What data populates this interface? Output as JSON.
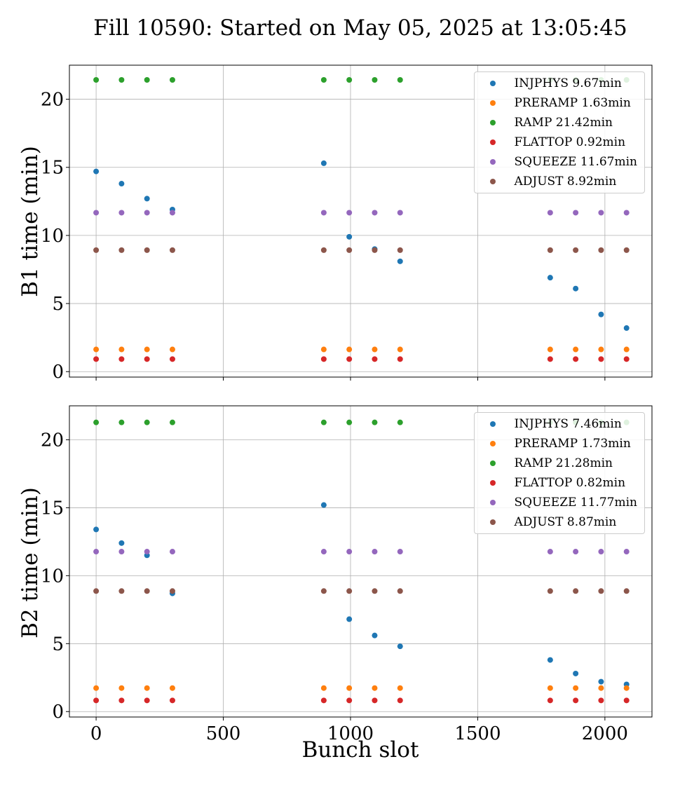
{
  "title": "Fill 10590: Started on May 05, 2025 at 13:05:45",
  "xlabel": "Bunch slot",
  "colors": {
    "INJPHYS": "#1f77b4",
    "PRERAMP": "#ff7f0e",
    "RAMP": "#2ca02c",
    "FLATTOP": "#d62728",
    "SQUEEZE": "#9467bd",
    "ADJUST": "#8c564b"
  },
  "chart_data": [
    {
      "type": "scatter",
      "ylabel": "B1 time (min)",
      "xlim": [
        -105,
        2185
      ],
      "ylim": [
        -0.4,
        22.5
      ],
      "xticks": [
        0,
        500,
        1000,
        1500,
        2000
      ],
      "yticks": [
        0,
        5,
        10,
        15,
        20
      ],
      "grid": true,
      "legend_position": "top-right",
      "x": [
        0,
        100,
        200,
        300,
        895,
        995,
        1095,
        1195,
        1785,
        1885,
        1985,
        2085
      ],
      "series": [
        {
          "name": "INJPHYS 9.67min",
          "key": "INJPHYS",
          "values": [
            14.7,
            13.8,
            12.7,
            11.9,
            15.3,
            9.9,
            9.0,
            8.1,
            6.9,
            6.1,
            4.2,
            3.2
          ]
        },
        {
          "name": "PRERAMP 1.63min",
          "key": "PRERAMP",
          "values": [
            1.63,
            1.63,
            1.63,
            1.63,
            1.63,
            1.63,
            1.63,
            1.63,
            1.63,
            1.63,
            1.63,
            1.63
          ]
        },
        {
          "name": "RAMP 21.42min",
          "key": "RAMP",
          "values": [
            21.42,
            21.42,
            21.42,
            21.42,
            21.42,
            21.42,
            21.42,
            21.42,
            21.42,
            21.42,
            21.42,
            21.42
          ]
        },
        {
          "name": "FLATTOP 0.92min",
          "key": "FLATTOP",
          "values": [
            0.92,
            0.92,
            0.92,
            0.92,
            0.92,
            0.92,
            0.92,
            0.92,
            0.92,
            0.92,
            0.92,
            0.92
          ]
        },
        {
          "name": "SQUEEZE 11.67min",
          "key": "SQUEEZE",
          "values": [
            11.67,
            11.67,
            11.67,
            11.67,
            11.67,
            11.67,
            11.67,
            11.67,
            11.67,
            11.67,
            11.67,
            11.67
          ]
        },
        {
          "name": "ADJUST 8.92min",
          "key": "ADJUST",
          "values": [
            8.92,
            8.92,
            8.92,
            8.92,
            8.92,
            8.92,
            8.92,
            8.92,
            8.92,
            8.92,
            8.92,
            8.92
          ]
        }
      ]
    },
    {
      "type": "scatter",
      "ylabel": "B2 time (min)",
      "xlim": [
        -105,
        2185
      ],
      "ylim": [
        -0.4,
        22.5
      ],
      "xticks": [
        0,
        500,
        1000,
        1500,
        2000
      ],
      "yticks": [
        0,
        5,
        10,
        15,
        20
      ],
      "grid": true,
      "legend_position": "top-right",
      "x": [
        0,
        100,
        200,
        300,
        895,
        995,
        1095,
        1195,
        1785,
        1885,
        1985,
        2085
      ],
      "series": [
        {
          "name": "INJPHYS 7.46min",
          "key": "INJPHYS",
          "values": [
            13.4,
            12.4,
            11.5,
            8.7,
            15.2,
            6.8,
            5.6,
            4.8,
            3.8,
            2.8,
            2.2,
            2.0
          ]
        },
        {
          "name": "PRERAMP 1.73min",
          "key": "PRERAMP",
          "values": [
            1.73,
            1.73,
            1.73,
            1.73,
            1.73,
            1.73,
            1.73,
            1.73,
            1.73,
            1.73,
            1.73,
            1.73
          ]
        },
        {
          "name": "RAMP 21.28min",
          "key": "RAMP",
          "values": [
            21.28,
            21.28,
            21.28,
            21.28,
            21.28,
            21.28,
            21.28,
            21.28,
            21.28,
            21.28,
            21.28,
            21.28
          ]
        },
        {
          "name": "FLATTOP 0.82min",
          "key": "FLATTOP",
          "values": [
            0.82,
            0.82,
            0.82,
            0.82,
            0.82,
            0.82,
            0.82,
            0.82,
            0.82,
            0.82,
            0.82,
            0.82
          ]
        },
        {
          "name": "SQUEEZE 11.77min",
          "key": "SQUEEZE",
          "values": [
            11.77,
            11.77,
            11.77,
            11.77,
            11.77,
            11.77,
            11.77,
            11.77,
            11.77,
            11.77,
            11.77,
            11.77
          ]
        },
        {
          "name": "ADJUST 8.87min",
          "key": "ADJUST",
          "values": [
            8.87,
            8.87,
            8.87,
            8.87,
            8.87,
            8.87,
            8.87,
            8.87,
            8.87,
            8.87,
            8.87,
            8.87
          ]
        }
      ]
    }
  ]
}
